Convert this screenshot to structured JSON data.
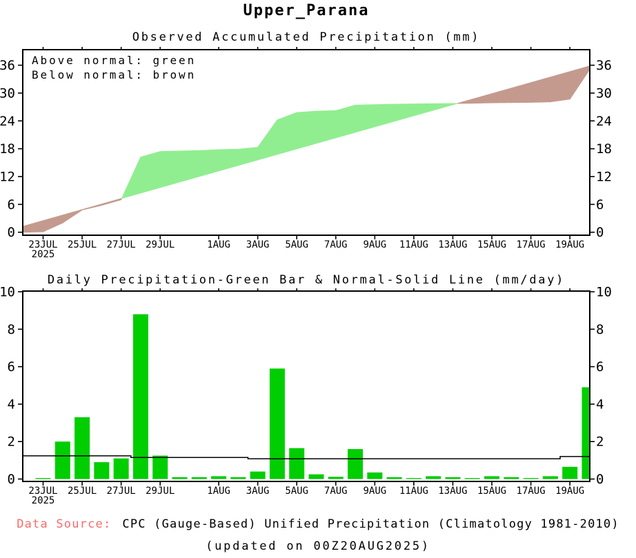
{
  "page": {
    "title": "Upper_Parana",
    "footer": {
      "data_source_label": "Data Source:",
      "data_source_text": "CPC (Gauge-Based) Unified Precipitation (Climatology 1981-2010)",
      "updated_text": "(updated on 00Z20AUG2025)",
      "data_source_color": "#f96a6a"
    }
  },
  "colors": {
    "above_normal_green": "#90ee90",
    "below_normal_brown": "#c49a8e",
    "daily_bar_green": "#00ce00",
    "axis_black": "#000000"
  },
  "chart_data": [
    {
      "type": "area",
      "title": "Observed Accumulated Precipitation (mm)",
      "legend_above": "Above normal: green",
      "legend_below": "Below normal: brown",
      "ylim": [
        0,
        36
      ],
      "yticks": [
        0,
        6,
        12,
        18,
        24,
        30,
        36
      ],
      "x_tick_labels": [
        "23JUL",
        "25JUL",
        "27JUL",
        "29JUL",
        "1AUG",
        "3AUG",
        "5AUG",
        "7AUG",
        "9AUG",
        "11AUG",
        "13AUG",
        "15AUG",
        "17AUG",
        "19AUG"
      ],
      "x_tick_days": [
        0,
        2,
        4,
        6,
        9,
        11,
        13,
        15,
        17,
        19,
        21,
        23,
        25,
        27
      ],
      "year_label": "2025",
      "days": [
        -1.04,
        0,
        1,
        2,
        3,
        4,
        5,
        6,
        7,
        8,
        9,
        10,
        11,
        12,
        13,
        14,
        15,
        16,
        17,
        18,
        19,
        20,
        21,
        22,
        23,
        24,
        25,
        26,
        27,
        28
      ],
      "observed_cum": [
        0,
        0.1,
        2.0,
        4.8,
        5.8,
        7.0,
        16.2,
        17.4,
        17.5,
        17.6,
        17.8,
        17.9,
        18.3,
        24.2,
        25.8,
        26.1,
        26.2,
        27.4,
        27.5,
        27.6,
        27.65,
        27.7,
        27.75,
        27.8,
        27.9,
        27.95,
        28.0,
        28.1,
        28.7,
        35.0
      ],
      "normal_cum": [
        1.26,
        2.5,
        3.69,
        4.88,
        6.07,
        7.26,
        8.45,
        9.64,
        10.83,
        12.02,
        13.21,
        14.4,
        15.59,
        16.78,
        17.97,
        19.16,
        20.35,
        21.54,
        22.73,
        23.92,
        25.11,
        26.3,
        27.49,
        28.68,
        29.87,
        31.06,
        32.25,
        33.44,
        34.63,
        35.82
      ],
      "above_color": "#90ee90",
      "below_color": "#c49a8e"
    },
    {
      "type": "bar",
      "title": "Daily Precipitation-Green Bar & Normal-Solid Line (mm/day)",
      "ylim": [
        0,
        10
      ],
      "yticks": [
        0,
        2,
        4,
        6,
        8,
        10
      ],
      "x_tick_labels": [
        "23JUL",
        "25JUL",
        "27JUL",
        "29JUL",
        "1AUG",
        "3AUG",
        "5AUG",
        "7AUG",
        "9AUG",
        "11AUG",
        "13AUG",
        "15AUG",
        "17AUG",
        "19AUG"
      ],
      "x_tick_days": [
        0,
        2,
        4,
        6,
        9,
        11,
        13,
        15,
        17,
        19,
        21,
        23,
        25,
        27
      ],
      "year_label": "2025",
      "dates": [
        "23JUL",
        "24JUL",
        "25JUL",
        "26JUL",
        "27JUL",
        "28JUL",
        "29JUL",
        "30JUL",
        "31JUL",
        "1AUG",
        "2AUG",
        "3AUG",
        "4AUG",
        "5AUG",
        "6AUG",
        "7AUG",
        "8AUG",
        "9AUG",
        "10AUG",
        "11AUG",
        "12AUG",
        "13AUG",
        "14AUG",
        "15AUG",
        "16AUG",
        "17AUG",
        "18AUG",
        "19AUG",
        "20AUG"
      ],
      "values": [
        0.05,
        2.0,
        3.3,
        0.9,
        1.1,
        8.8,
        1.25,
        0.1,
        0.1,
        0.15,
        0.1,
        0.4,
        5.9,
        1.65,
        0.25,
        0.12,
        1.6,
        0.35,
        0.1,
        0.05,
        0.15,
        0.1,
        0.05,
        0.15,
        0.1,
        0.05,
        0.15,
        0.65,
        4.9
      ],
      "bar_color": "#00ce00",
      "normal_line_color": "#000000",
      "normal_segments": [
        {
          "from_day": -1.04,
          "to_day": 4.5,
          "value": 1.24
        },
        {
          "from_day": 4.5,
          "to_day": 10.5,
          "value": 1.15
        },
        {
          "from_day": 10.5,
          "to_day": 26.5,
          "value": 1.08
        },
        {
          "from_day": 26.5,
          "to_day": 28.1,
          "value": 1.2
        }
      ]
    }
  ]
}
